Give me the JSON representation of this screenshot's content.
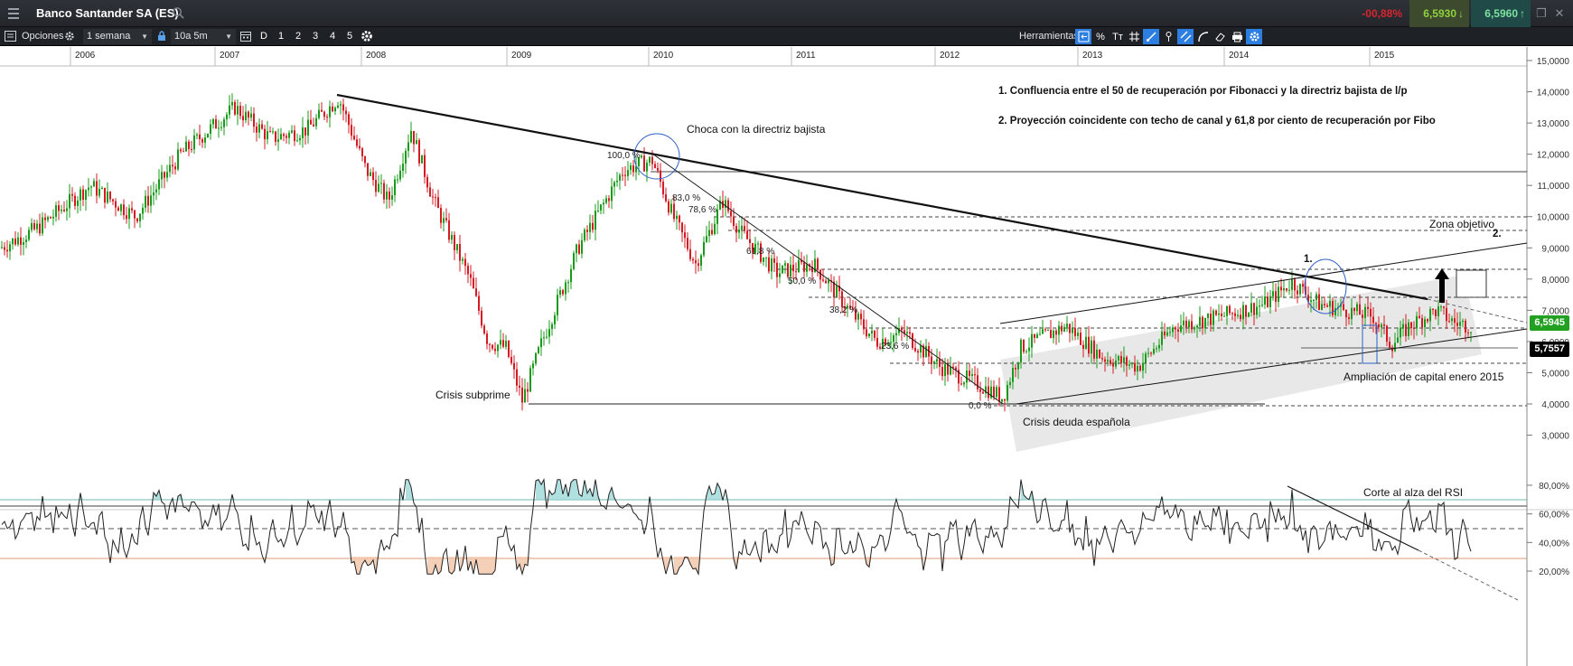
{
  "window": {
    "title": "Banco Santander SA (ES)",
    "quote": {
      "change": "-00,88%",
      "bid": "6,5930",
      "ask": "6,5960",
      "bid_dir": "↓",
      "ask_dir": "↑"
    }
  },
  "toolbar": {
    "options_label": "Opciones",
    "interval_select": "1 semana",
    "range_select": "10a 5m",
    "period_buttons": [
      "D",
      "1",
      "2",
      "3",
      "4",
      "5"
    ],
    "tools_label": "Herramientas",
    "pct_tool": "%",
    "text_tool": "Tт"
  },
  "icons": {
    "menu": "hamburger-icon",
    "search": "search-icon",
    "gear": "gear-icon",
    "lock": "lock-icon",
    "calendar": "calendar-icon",
    "restore": "restore-window-icon",
    "close": "close-icon"
  },
  "colors": {
    "bull": "#1a9a1a",
    "bear": "#d41b24",
    "rsi_line": "#222222",
    "overbought_fill": "#9ed8da",
    "oversold_fill": "#f3c4a8",
    "last_price": "#22a021",
    "support_tag": "#000000"
  },
  "chart": {
    "years": [
      "2006",
      "2007",
      "2008",
      "2009",
      "2010",
      "2011",
      "2012",
      "2013",
      "2014",
      "2015"
    ],
    "price_axis": [
      "15,0000",
      "14,0000",
      "13,0000",
      "12,0000",
      "11,0000",
      "10,0000",
      "9,0000",
      "8,0000",
      "7,0000",
      "6,0000",
      "5,0000",
      "4,0000",
      "3,0000"
    ],
    "rsi_axis": [
      "80,00%",
      "60,00%",
      "40,00%",
      "20,00%"
    ],
    "last_price": "6,5945",
    "support_price": "5,7557",
    "notes": {
      "note1": "1. Confluencia entre el 50 de recuperación por Fibonacci y la directriz bajista de l/p",
      "note2": "2. Proyección coincidente con techo de canal y 61,8 por ciento de recuperación por Fibo",
      "choca": "Choca con la directriz bajista",
      "subprime": "Crisis subprime",
      "deuda": "Crisis deuda española",
      "ampliacion": "Ampliación de capital enero 2015",
      "zona": "Zona objetivo",
      "mark1": "1.",
      "mark2": "2.",
      "rsi_note": "Corte al alza del RSI"
    },
    "fib_labels": [
      "100,0 %",
      "83,0 %",
      "78,6 %",
      "61,8 %",
      "50,0 %",
      "38,2 %",
      "23,6 %",
      "0,0 %"
    ]
  },
  "chart_data": {
    "type": "line",
    "title": "",
    "x": [
      "2006",
      "2007",
      "2008",
      "2009",
      "2010",
      "2011",
      "2012",
      "2013",
      "2014",
      "2015"
    ],
    "series": [
      {
        "values": [
          9.6,
          12.5,
          11.5,
          5.5,
          11.0,
          8.0,
          5.5,
          6.0,
          7.4,
          6.6
        ]
      }
    ],
    "ylim": [
      2.5,
      15.0
    ],
    "fib_levels": {
      "0.0": 4.0,
      "23.6": 5.85,
      "38.2": 7.0,
      "50.0": 7.95,
      "61.8": 8.9,
      "78.6": 10.25,
      "83.0": 10.6,
      "100.0": 12.0
    },
    "rsi": {
      "ylim": [
        0,
        100
      ],
      "overbought": 70,
      "oversold": 30,
      "mid": 50
    }
  }
}
